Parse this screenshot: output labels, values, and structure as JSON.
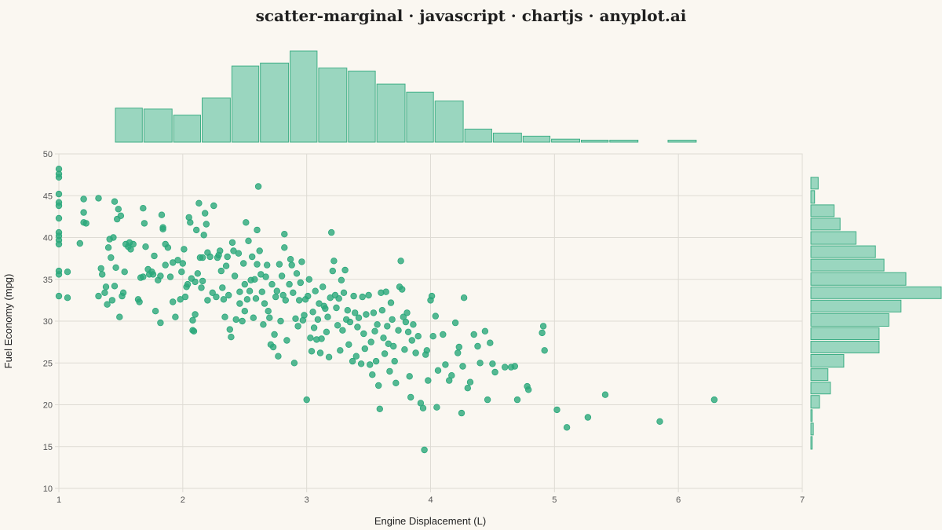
{
  "title": "scatter-marginal · javascript · chartjs · anyplot.ai",
  "colors": {
    "accent": "#2aa87b",
    "bar_fill": "#9ad6bf",
    "bar_stroke": "#3fae86",
    "grid": "#dedbd4",
    "background": "#faf7f1"
  },
  "chart_data": [
    {
      "type": "scatter",
      "xlabel": "Engine Displacement (L)",
      "ylabel": "Fuel Economy (mpg)",
      "xlim": [
        1,
        7
      ],
      "ylim": [
        10,
        50
      ],
      "x_ticks": [
        "1",
        "2",
        "3",
        "4",
        "5",
        "6",
        "7"
      ],
      "y_ticks": [
        "10",
        "15",
        "20",
        "25",
        "30",
        "35",
        "40",
        "45",
        "50"
      ],
      "grid": true,
      "points": [
        [
          1.0,
          48.2
        ],
        [
          1.0,
          47.6
        ],
        [
          1.0,
          47.2
        ],
        [
          1.0,
          45.2
        ],
        [
          1.0,
          44.2
        ],
        [
          1.0,
          43.8
        ],
        [
          1.0,
          42.3
        ],
        [
          1.0,
          40.6
        ],
        [
          1.0,
          40.2
        ],
        [
          1.0,
          39.7
        ],
        [
          1.0,
          39.2
        ],
        [
          1.0,
          36.0
        ],
        [
          1.0,
          35.6
        ],
        [
          1.0,
          33.0
        ],
        [
          1.07,
          35.9
        ],
        [
          1.07,
          32.8
        ],
        [
          1.17,
          39.3
        ],
        [
          1.2,
          44.6
        ],
        [
          1.2,
          43.0
        ],
        [
          1.2,
          41.8
        ],
        [
          1.22,
          41.7
        ],
        [
          1.32,
          44.7
        ],
        [
          1.32,
          33.0
        ],
        [
          1.34,
          36.3
        ],
        [
          1.35,
          35.6
        ],
        [
          1.37,
          33.4
        ],
        [
          1.38,
          34.1
        ],
        [
          1.39,
          32.0
        ],
        [
          1.4,
          38.8
        ],
        [
          1.41,
          39.8
        ],
        [
          1.42,
          37.6
        ],
        [
          1.43,
          32.5
        ],
        [
          1.44,
          40.0
        ],
        [
          1.45,
          44.3
        ],
        [
          1.45,
          34.2
        ],
        [
          1.46,
          36.4
        ],
        [
          1.47,
          42.2
        ],
        [
          1.48,
          43.4
        ],
        [
          1.49,
          30.5
        ],
        [
          1.5,
          42.6
        ],
        [
          1.51,
          33.0
        ],
        [
          1.52,
          33.4
        ],
        [
          1.53,
          35.9
        ],
        [
          1.54,
          39.2
        ],
        [
          1.56,
          38.9
        ],
        [
          1.57,
          39.4
        ],
        [
          1.58,
          38.6
        ],
        [
          1.6,
          39.2
        ],
        [
          1.64,
          32.6
        ],
        [
          1.65,
          32.3
        ],
        [
          1.66,
          35.2
        ],
        [
          1.68,
          35.3
        ],
        [
          1.68,
          43.5
        ],
        [
          1.69,
          41.7
        ],
        [
          1.7,
          38.9
        ],
        [
          1.72,
          36.2
        ],
        [
          1.73,
          35.6
        ],
        [
          1.75,
          35.9
        ],
        [
          1.76,
          35.6
        ],
        [
          1.77,
          37.8
        ],
        [
          1.78,
          31.2
        ],
        [
          1.8,
          34.9
        ],
        [
          1.82,
          35.4
        ],
        [
          1.82,
          29.8
        ],
        [
          1.83,
          42.7
        ],
        [
          1.84,
          41.0
        ],
        [
          1.84,
          41.2
        ],
        [
          1.86,
          36.7
        ],
        [
          1.86,
          39.2
        ],
        [
          1.88,
          38.8
        ],
        [
          1.9,
          35.3
        ],
        [
          1.92,
          37.0
        ],
        [
          1.92,
          32.3
        ],
        [
          1.94,
          30.5
        ],
        [
          1.96,
          37.3
        ],
        [
          1.98,
          32.6
        ],
        [
          1.99,
          35.9
        ],
        [
          2.0,
          36.9
        ],
        [
          2.01,
          38.6
        ],
        [
          2.02,
          32.9
        ],
        [
          2.03,
          34.1
        ],
        [
          2.04,
          34.4
        ],
        [
          2.05,
          42.4
        ],
        [
          2.06,
          41.8
        ],
        [
          2.07,
          35.1
        ],
        [
          2.08,
          30.1
        ],
        [
          2.08,
          28.9
        ],
        [
          2.09,
          28.8
        ],
        [
          2.1,
          30.8
        ],
        [
          2.1,
          34.7
        ],
        [
          2.11,
          40.9
        ],
        [
          2.12,
          35.7
        ],
        [
          2.13,
          44.1
        ],
        [
          2.14,
          37.6
        ],
        [
          2.15,
          34.0
        ],
        [
          2.16,
          37.6
        ],
        [
          2.16,
          34.8
        ],
        [
          2.17,
          40.3
        ],
        [
          2.18,
          42.9
        ],
        [
          2.19,
          41.6
        ],
        [
          2.2,
          32.5
        ],
        [
          2.2,
          38.2
        ],
        [
          2.22,
          37.7
        ],
        [
          2.24,
          33.4
        ],
        [
          2.25,
          43.8
        ],
        [
          2.27,
          32.9
        ],
        [
          2.28,
          37.6
        ],
        [
          2.29,
          37.9
        ],
        [
          2.3,
          38.4
        ],
        [
          2.31,
          36.0
        ],
        [
          2.32,
          34.0
        ],
        [
          2.33,
          32.6
        ],
        [
          2.34,
          30.5
        ],
        [
          2.35,
          36.6
        ],
        [
          2.36,
          37.7
        ],
        [
          2.37,
          33.1
        ],
        [
          2.38,
          29.0
        ],
        [
          2.39,
          28.1
        ],
        [
          2.4,
          39.4
        ],
        [
          2.41,
          38.4
        ],
        [
          2.42,
          35.4
        ],
        [
          2.43,
          30.2
        ],
        [
          2.45,
          38.1
        ],
        [
          2.46,
          32.1
        ],
        [
          2.46,
          33.5
        ],
        [
          2.48,
          30.0
        ],
        [
          2.49,
          36.9
        ],
        [
          2.5,
          31.2
        ],
        [
          2.5,
          34.4
        ],
        [
          2.51,
          41.8
        ],
        [
          2.52,
          32.6
        ],
        [
          2.53,
          39.6
        ],
        [
          2.54,
          33.6
        ],
        [
          2.55,
          34.9
        ],
        [
          2.56,
          37.7
        ],
        [
          2.57,
          30.4
        ],
        [
          2.58,
          35.0
        ],
        [
          2.59,
          32.7
        ],
        [
          2.6,
          40.9
        ],
        [
          2.6,
          36.8
        ],
        [
          2.61,
          46.1
        ],
        [
          2.62,
          38.4
        ],
        [
          2.63,
          35.6
        ],
        [
          2.64,
          33.5
        ],
        [
          2.65,
          29.6
        ],
        [
          2.66,
          32.1
        ],
        [
          2.67,
          35.3
        ],
        [
          2.68,
          36.7
        ],
        [
          2.69,
          31.2
        ],
        [
          2.7,
          30.4
        ],
        [
          2.71,
          27.2
        ],
        [
          2.72,
          34.4
        ],
        [
          2.73,
          26.9
        ],
        [
          2.74,
          28.4
        ],
        [
          2.75,
          32.9
        ],
        [
          2.76,
          33.6
        ],
        [
          2.77,
          25.8
        ],
        [
          2.78,
          36.8
        ],
        [
          2.79,
          30.0
        ],
        [
          2.8,
          35.4
        ],
        [
          2.81,
          33.1
        ],
        [
          2.82,
          40.4
        ],
        [
          2.82,
          38.8
        ],
        [
          2.83,
          32.5
        ],
        [
          2.84,
          27.7
        ],
        [
          2.86,
          34.4
        ],
        [
          2.87,
          37.4
        ],
        [
          2.88,
          36.7
        ],
        [
          2.89,
          33.4
        ],
        [
          2.9,
          25.0
        ],
        [
          2.91,
          30.3
        ],
        [
          2.92,
          35.7
        ],
        [
          2.93,
          29.4
        ],
        [
          2.94,
          32.5
        ],
        [
          2.95,
          34.6
        ],
        [
          2.96,
          37.1
        ],
        [
          2.97,
          30.1
        ],
        [
          2.98,
          30.7
        ],
        [
          2.99,
          32.6
        ],
        [
          3.0,
          20.6
        ],
        [
          3.01,
          33.0
        ],
        [
          3.02,
          35.0
        ],
        [
          3.03,
          28.0
        ],
        [
          3.04,
          26.4
        ],
        [
          3.05,
          31.1
        ],
        [
          3.06,
          29.2
        ],
        [
          3.07,
          33.6
        ],
        [
          3.08,
          27.8
        ],
        [
          3.09,
          30.2
        ],
        [
          3.1,
          32.1
        ],
        [
          3.11,
          26.2
        ],
        [
          3.12,
          27.9
        ],
        [
          3.13,
          34.1
        ],
        [
          3.14,
          31.8
        ],
        [
          3.15,
          31.5
        ],
        [
          3.16,
          28.7
        ],
        [
          3.17,
          30.5
        ],
        [
          3.18,
          25.7
        ],
        [
          3.19,
          32.8
        ],
        [
          3.2,
          40.6
        ],
        [
          3.21,
          36.0
        ],
        [
          3.22,
          37.2
        ],
        [
          3.23,
          33.1
        ],
        [
          3.24,
          31.6
        ],
        [
          3.25,
          29.5
        ],
        [
          3.26,
          32.7
        ],
        [
          3.27,
          26.5
        ],
        [
          3.28,
          34.9
        ],
        [
          3.29,
          28.9
        ],
        [
          3.3,
          33.4
        ],
        [
          3.31,
          36.1
        ],
        [
          3.32,
          30.2
        ],
        [
          3.33,
          31.3
        ],
        [
          3.34,
          27.2
        ],
        [
          3.35,
          29.9
        ],
        [
          3.37,
          25.2
        ],
        [
          3.38,
          33.0
        ],
        [
          3.39,
          31.0
        ],
        [
          3.4,
          25.8
        ],
        [
          3.41,
          29.3
        ],
        [
          3.42,
          30.4
        ],
        [
          3.44,
          24.9
        ],
        [
          3.45,
          32.9
        ],
        [
          3.46,
          28.5
        ],
        [
          3.47,
          26.7
        ],
        [
          3.48,
          30.8
        ],
        [
          3.5,
          33.1
        ],
        [
          3.51,
          24.8
        ],
        [
          3.52,
          27.5
        ],
        [
          3.53,
          23.6
        ],
        [
          3.54,
          31.0
        ],
        [
          3.55,
          28.8
        ],
        [
          3.56,
          25.2
        ],
        [
          3.57,
          29.6
        ],
        [
          3.58,
          22.3
        ],
        [
          3.59,
          19.5
        ],
        [
          3.6,
          33.4
        ],
        [
          3.61,
          31.3
        ],
        [
          3.62,
          28.0
        ],
        [
          3.63,
          26.1
        ],
        [
          3.64,
          33.5
        ],
        [
          3.65,
          29.4
        ],
        [
          3.66,
          27.3
        ],
        [
          3.67,
          24.0
        ],
        [
          3.68,
          32.2
        ],
        [
          3.69,
          30.2
        ],
        [
          3.7,
          27.0
        ],
        [
          3.71,
          25.2
        ],
        [
          3.72,
          22.6
        ],
        [
          3.74,
          28.9
        ],
        [
          3.75,
          34.1
        ],
        [
          3.76,
          37.2
        ],
        [
          3.77,
          33.8
        ],
        [
          3.78,
          30.5
        ],
        [
          3.79,
          26.6
        ],
        [
          3.8,
          29.9
        ],
        [
          3.81,
          31.0
        ],
        [
          3.82,
          28.7
        ],
        [
          3.83,
          23.4
        ],
        [
          3.84,
          20.9
        ],
        [
          3.85,
          27.7
        ],
        [
          3.86,
          29.6
        ],
        [
          3.88,
          26.2
        ],
        [
          3.9,
          28.2
        ],
        [
          3.92,
          20.2
        ],
        [
          3.94,
          19.6
        ],
        [
          3.95,
          14.6
        ],
        [
          3.96,
          26.0
        ],
        [
          3.97,
          26.5
        ],
        [
          3.98,
          22.9
        ],
        [
          4.0,
          32.5
        ],
        [
          4.01,
          33.0
        ],
        [
          4.02,
          28.2
        ],
        [
          4.04,
          30.6
        ],
        [
          4.05,
          19.7
        ],
        [
          4.06,
          24.1
        ],
        [
          4.1,
          28.4
        ],
        [
          4.12,
          24.8
        ],
        [
          4.15,
          22.9
        ],
        [
          4.17,
          23.5
        ],
        [
          4.2,
          29.8
        ],
        [
          4.22,
          26.2
        ],
        [
          4.23,
          26.9
        ],
        [
          4.25,
          19.0
        ],
        [
          4.26,
          24.6
        ],
        [
          4.27,
          32.8
        ],
        [
          4.3,
          22.0
        ],
        [
          4.32,
          22.7
        ],
        [
          4.35,
          28.4
        ],
        [
          4.38,
          27.0
        ],
        [
          4.4,
          25.0
        ],
        [
          4.44,
          28.8
        ],
        [
          4.46,
          20.6
        ],
        [
          4.48,
          27.4
        ],
        [
          4.5,
          24.9
        ],
        [
          4.52,
          23.9
        ],
        [
          4.6,
          24.5
        ],
        [
          4.65,
          24.5
        ],
        [
          4.68,
          24.6
        ],
        [
          4.7,
          20.6
        ],
        [
          4.78,
          22.2
        ],
        [
          4.79,
          21.8
        ],
        [
          4.9,
          28.6
        ],
        [
          4.91,
          29.4
        ],
        [
          4.92,
          26.5
        ],
        [
          5.02,
          19.4
        ],
        [
          5.1,
          17.3
        ],
        [
          5.27,
          18.5
        ],
        [
          5.41,
          21.2
        ],
        [
          5.85,
          18.0
        ],
        [
          6.29,
          20.6
        ]
      ]
    },
    {
      "type": "bar",
      "orientation": "vertical",
      "role": "marginal-histogram-x",
      "bins": [
        1.45,
        1.68,
        1.92,
        2.15,
        2.39,
        2.62,
        2.86,
        3.09,
        3.33,
        3.56,
        3.8,
        4.03,
        4.27,
        4.5,
        4.74,
        4.97,
        5.21,
        5.44,
        5.68,
        5.91,
        6.15
      ],
      "counts": [
        34,
        33,
        27,
        44,
        76,
        79,
        91,
        74,
        71,
        58,
        50,
        41,
        13,
        9,
        6,
        3,
        2,
        2,
        0,
        2
      ]
    },
    {
      "type": "bar",
      "orientation": "horizontal",
      "role": "marginal-histogram-y",
      "bins": [
        47.3,
        45.7,
        44.0,
        42.4,
        40.8,
        39.1,
        37.5,
        35.9,
        34.2,
        32.6,
        31.0,
        29.3,
        27.7,
        26.1,
        24.4,
        22.8,
        21.2,
        19.5,
        17.9,
        16.3,
        14.6
      ],
      "counts": [
        6,
        3,
        19,
        24,
        37,
        53,
        60,
        78,
        107,
        74,
        64,
        56,
        56,
        27,
        14,
        16,
        7,
        1,
        2,
        1
      ]
    }
  ]
}
